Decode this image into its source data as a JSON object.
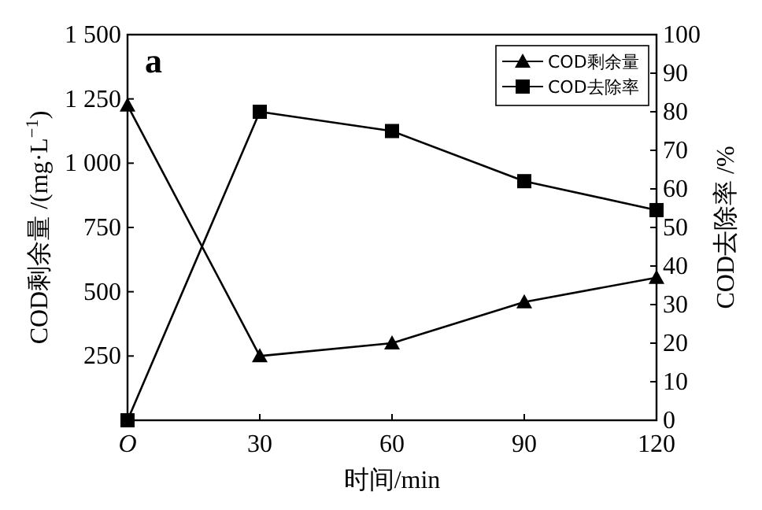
{
  "chart_data": {
    "type": "line",
    "x": [
      0,
      30,
      60,
      90,
      120
    ],
    "xlabel": "时间/min",
    "ylabel": "COD剩余量 /(mg·L$^{−1}$)",
    "y2label": "COD去除率 /%",
    "annotations": [
      "a"
    ],
    "xlim": [
      0,
      120
    ],
    "xticks": [
      {
        "value": 0,
        "label": "O"
      },
      30,
      60,
      90,
      120
    ],
    "ylim": [
      0,
      1500
    ],
    "yticks": [
      250,
      500,
      750,
      {
        "value": 1000,
        "label": "1 000"
      },
      {
        "value": 1250,
        "label": "1 250"
      },
      {
        "value": 1500,
        "label": "1 500"
      }
    ],
    "y2lim": [
      0,
      100
    ],
    "y2ticks": [
      0,
      10,
      20,
      30,
      40,
      50,
      60,
      70,
      80,
      90,
      100
    ],
    "legend": "top right",
    "grid": false,
    "line_style": "solid",
    "series": [
      {
        "name": "COD剩余量",
        "color": "#000000",
        "marker": "triangle",
        "values": [
          1225,
          250,
          300,
          460,
          555
        ]
      },
      {
        "name": "COD去除率",
        "color": "#000000",
        "marker": "square",
        "axis": "y2",
        "values": [
          0,
          80,
          75,
          62,
          54.5
        ]
      }
    ]
  }
}
